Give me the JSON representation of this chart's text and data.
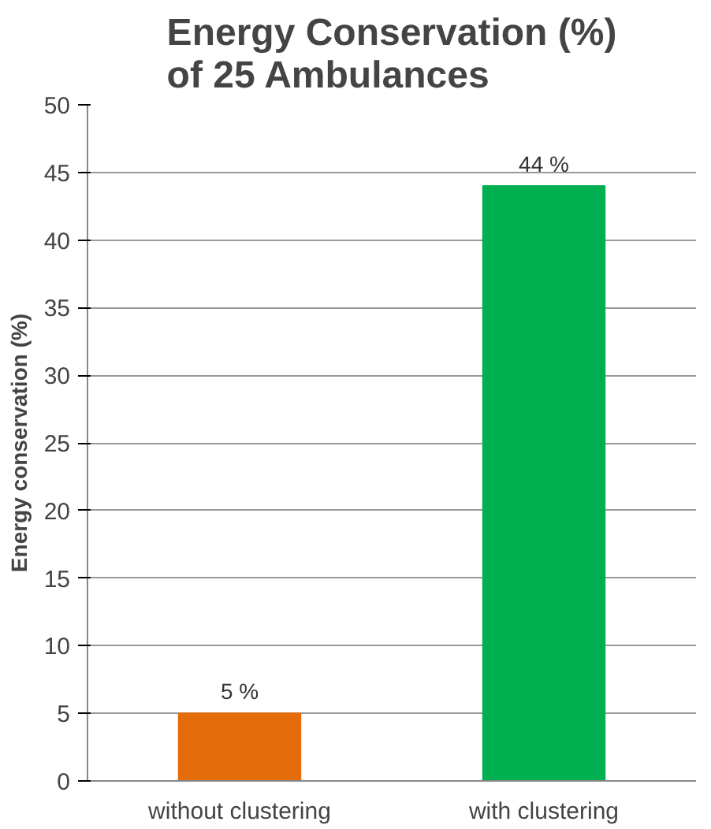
{
  "chart_data": {
    "type": "bar",
    "title": "Energy Conservation (%)\nof 25 Ambulances",
    "ylabel": "Energy conservation (%)",
    "categories": [
      "without clustering",
      "with clustering"
    ],
    "values": [
      5,
      44
    ],
    "colors": [
      "#e46c0a",
      "#00b050"
    ],
    "value_labels": [
      "5 %",
      "44 %"
    ],
    "ylim": [
      0,
      50
    ],
    "yticks": [
      0,
      5,
      10,
      15,
      20,
      25,
      30,
      35,
      40,
      45,
      50
    ],
    "grid": "y"
  }
}
